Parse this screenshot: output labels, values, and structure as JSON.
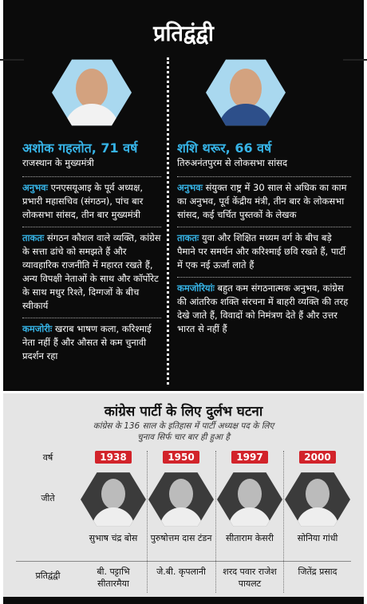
{
  "header": {
    "title": "प्रतिद्वंद्वी"
  },
  "candidates": [
    {
      "name": "अशोक गहलोत, 71 वर्ष",
      "subtitle": "राजस्थान के मुख्यमंत्री",
      "sections": [
        {
          "label": "अनुभवः",
          "text": "एनएसयूआइ के पूर्व अध्यक्ष, प्रभारी महासचिव (संगठन), पांच बार लोकसभा सांसद, तीन बार मुख्यमंत्री"
        },
        {
          "label": "ताकतः",
          "text": "संगठन कौशल वाले व्यक्ति, कांग्रेस के सत्ता ढांचे को समझते हैं और व्यावहारिक राजनीति में महारत रखते हैं, अन्य विपक्षी नेताओं के साथ और कॉर्पोरेट के साथ मधुर रिश्ते, दिग्गजों के बीच स्वीकार्य"
        },
        {
          "label": "कमजोरीः",
          "text": "खराब भाषण कला, करिश्माई नेता नहीं हैं और औसत से कम चुनावी प्रदर्शन रहा"
        }
      ]
    },
    {
      "name": "शशि थरूर, 66 वर्ष",
      "subtitle": "तिरुअनंतपुरम से लोकसभा सांसद",
      "sections": [
        {
          "label": "अनुभवः",
          "text": "संयुक्त राष्ट्र में 30 साल से अधिक का काम का अनुभव, पूर्व केंद्रीय मंत्री, तीन बार के लोकसभा सांसद, कई चर्चित पुस्तकों के लेखक"
        },
        {
          "label": "ताकतः",
          "text": "युवा और शिक्षित मध्यम वर्ग के बीच बड़े पैमाने पर समर्थन और करिश्माई छवि रखते हैं, पार्टी में एक नई ऊर्जा लाते हैं"
        },
        {
          "label": "कमजोरियांः",
          "text": "बहुत कम संगठनात्मक अनुभव, कांग्रेस की आंतरिक शक्ति संरचना में बाहरी व्यक्ति की तरह देखे जाते हैं, विवादों को निमंत्रण देते हैं और उत्तर भारत से नहीं हैं"
        }
      ]
    }
  ],
  "history": {
    "title": "कांग्रेस पार्टी के लिए दुर्लभ घटना",
    "subtitle": "कांग्रेस के 136 साल के इतिहास में पार्टी अध्यक्ष पद के लिए चुनाव सिर्फ चार बार ही हुआ है",
    "row_labels": {
      "year": "वर्ष",
      "winner": "जीते",
      "rival": "प्रतिद्वंद्वी"
    },
    "elections": [
      {
        "year": 1938,
        "winner": "सुभाष चंद्र बोस",
        "rival": "बी. पट्टाभि सीतारमैया"
      },
      {
        "year": 1950,
        "winner": "पुरुषोत्तम दास टंडन",
        "rival": "जे.बी. कृपलानी"
      },
      {
        "year": 1997,
        "winner": "सीताराम केसरी",
        "rival": "शरद पवार राजेश पायलट"
      },
      {
        "year": 2000,
        "winner": "सोनिया गांधी",
        "rival": "जितेंद्र प्रसाद"
      }
    ]
  }
}
